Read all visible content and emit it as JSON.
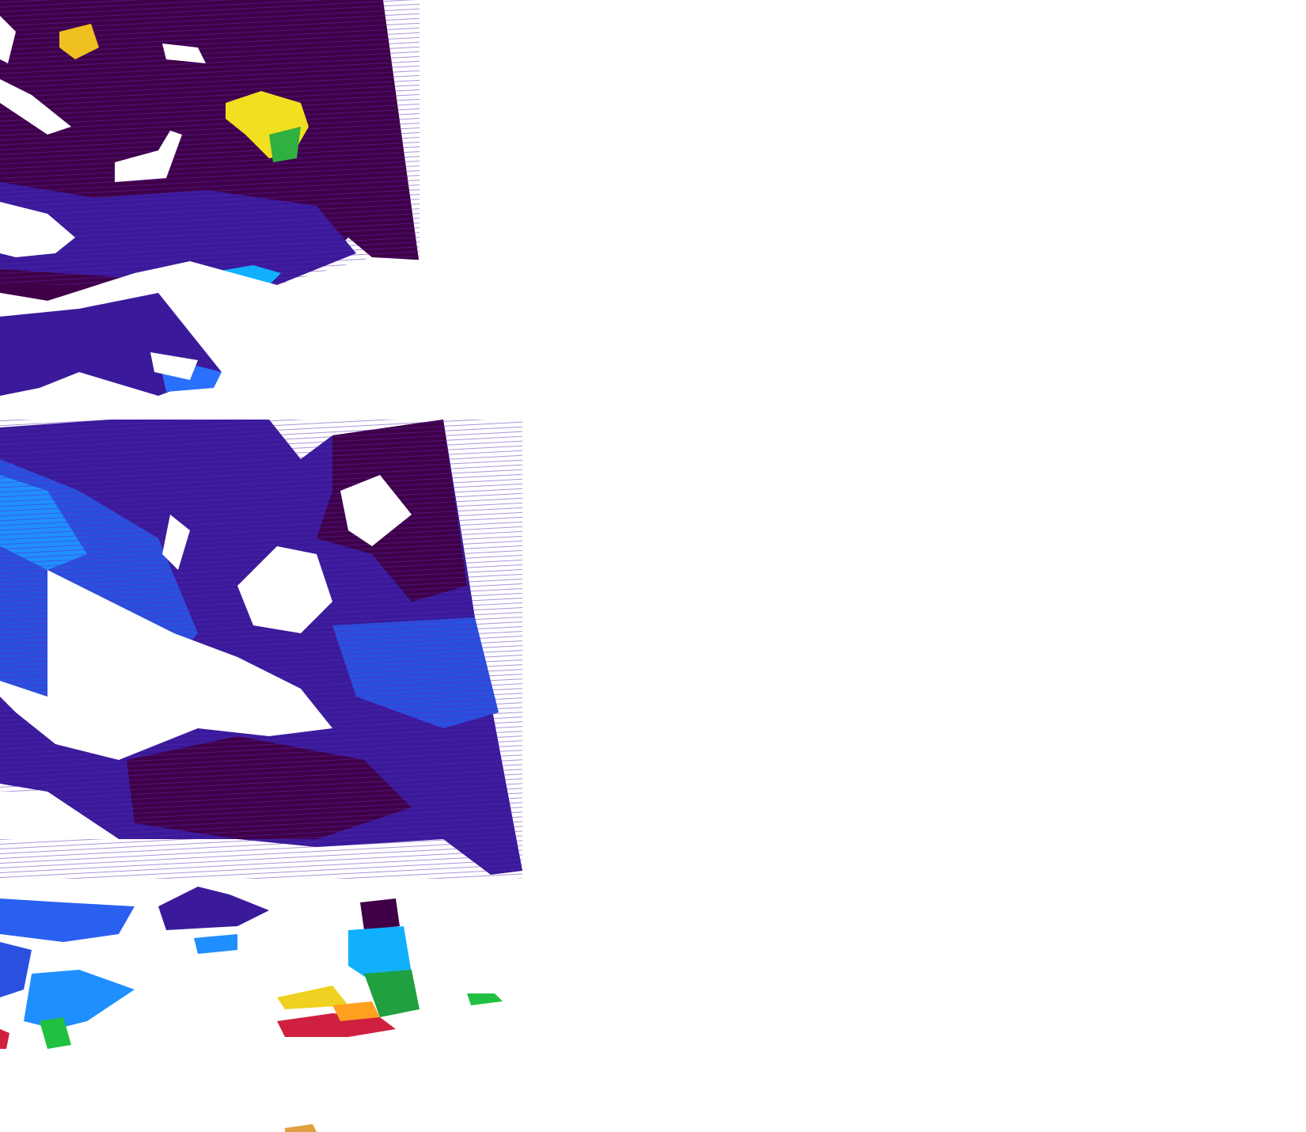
{
  "map": {
    "kind": "satellite swath data overlay",
    "colormap": [
      "#3f0048",
      "#3a1a9a",
      "#2a3fd8",
      "#1f7fff",
      "#10c0ff",
      "#20d060",
      "#f0f020",
      "#ffa020",
      "#d02040"
    ],
    "colors": {
      "no_data": "#ffffff",
      "low": "#3f0048",
      "deep_blue": "#3a1a9a",
      "blue": "#2a50e0",
      "light_blue": "#1f8fff",
      "green": "#20c040",
      "yellow": "#f0f020",
      "orange": "#ffa020",
      "red": "#d02040"
    }
  }
}
